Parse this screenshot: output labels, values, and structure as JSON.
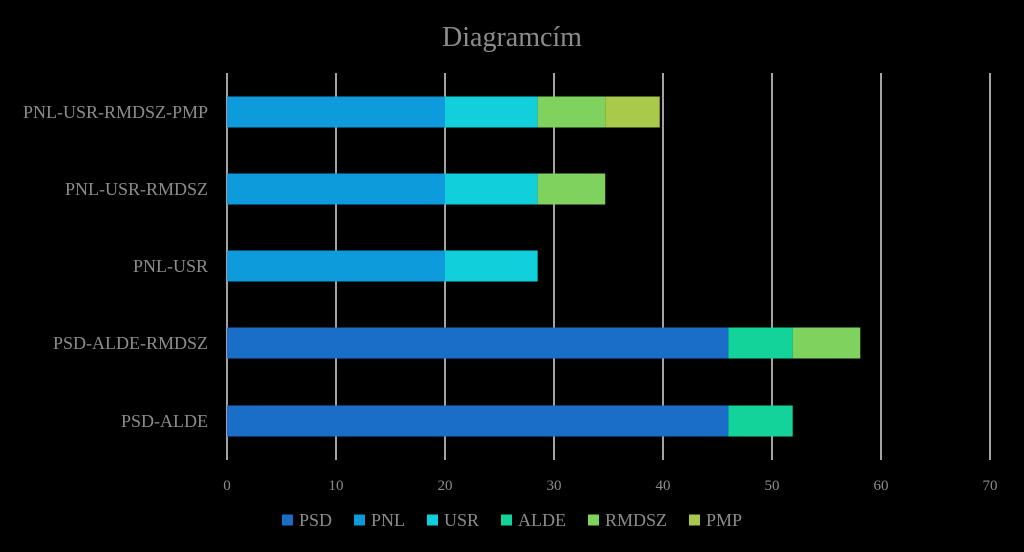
{
  "chart_data": {
    "type": "bar",
    "orientation": "horizontal",
    "stacked": true,
    "title": "Diagramcím",
    "categories": [
      "PNL-USR-RMDSZ-PMP",
      "PNL-USR-RMDSZ",
      "PNL-USR",
      "PSD-ALDE-RMDSZ",
      "PSD-ALDE"
    ],
    "series": [
      {
        "name": "PSD",
        "color": "#1b6ec7",
        "values": [
          0,
          0,
          0,
          46,
          46
        ]
      },
      {
        "name": "PNL",
        "color": "#0e9bdb",
        "values": [
          20,
          20,
          20,
          0,
          0
        ]
      },
      {
        "name": "USR",
        "color": "#11d0db",
        "values": [
          8.5,
          8.5,
          8.5,
          0,
          0
        ]
      },
      {
        "name": "ALDE",
        "color": "#14d39a",
        "values": [
          0,
          0,
          0,
          5.9,
          5.9
        ]
      },
      {
        "name": "RMDSZ",
        "color": "#7fd25e",
        "values": [
          6.2,
          6.2,
          0,
          6.2,
          0
        ]
      },
      {
        "name": "PMP",
        "color": "#a9c94b",
        "values": [
          5,
          0,
          0,
          0,
          0
        ]
      }
    ],
    "xlim": [
      0,
      70
    ],
    "xticks": [
      "0",
      "10",
      "20",
      "30",
      "40",
      "50",
      "60",
      "70"
    ],
    "grid": true,
    "legend": "bottom",
    "xlabel": "",
    "ylabel": ""
  }
}
